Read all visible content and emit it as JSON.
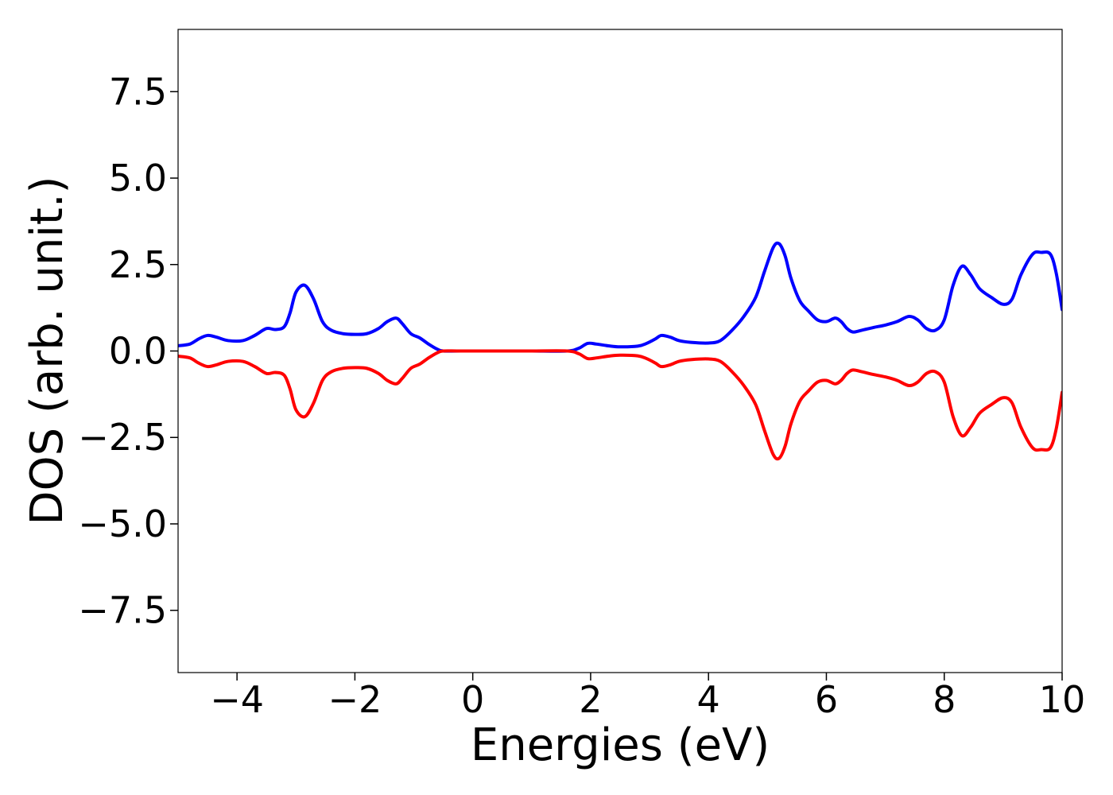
{
  "chart_data": {
    "type": "line",
    "title": "",
    "xlabel": "Energies (eV)",
    "ylabel": "DOS (arb. unit.)",
    "xlim": [
      -5,
      10
    ],
    "ylim": [
      -9.3,
      9.3
    ],
    "x_ticks": [
      -4,
      -2,
      0,
      2,
      4,
      6,
      8,
      10
    ],
    "x_tick_labels": [
      "−4",
      "−2",
      "0",
      "2",
      "4",
      "6",
      "8",
      "10"
    ],
    "y_ticks": [
      7.5,
      5.0,
      2.5,
      0.0,
      -2.5,
      -5.0,
      -7.5
    ],
    "y_tick_labels": [
      "7.5",
      "5.0",
      "2.5",
      "0.0",
      "−2.5",
      "−5.0",
      "−7.5"
    ],
    "grid": false,
    "series": [
      {
        "color": "#0000ff",
        "x": [
          -5.0,
          -4.8,
          -4.65,
          -4.5,
          -4.35,
          -4.15,
          -3.9,
          -3.7,
          -3.5,
          -3.35,
          -3.2,
          -3.1,
          -3.0,
          -2.85,
          -2.7,
          -2.55,
          -2.4,
          -2.2,
          -2.0,
          -1.8,
          -1.6,
          -1.45,
          -1.3,
          -1.2,
          -1.05,
          -0.9,
          -0.75,
          -0.6,
          -0.5,
          -0.2,
          0.5,
          1.0,
          1.6,
          1.8,
          1.95,
          2.1,
          2.3,
          2.5,
          2.8,
          2.95,
          3.1,
          3.2,
          3.35,
          3.5,
          3.7,
          4.0,
          4.2,
          4.4,
          4.6,
          4.8,
          4.95,
          5.1,
          5.2,
          5.3,
          5.4,
          5.55,
          5.7,
          5.85,
          6.0,
          6.15,
          6.25,
          6.35,
          6.45,
          6.6,
          6.8,
          7.0,
          7.2,
          7.4,
          7.55,
          7.7,
          7.85,
          8.0,
          8.15,
          8.3,
          8.45,
          8.6,
          8.8,
          9.0,
          9.15,
          9.3,
          9.5,
          9.65,
          9.8,
          9.9,
          10.0
        ],
        "y": [
          0.15,
          0.2,
          0.35,
          0.45,
          0.4,
          0.3,
          0.3,
          0.45,
          0.65,
          0.62,
          0.7,
          1.1,
          1.7,
          1.9,
          1.5,
          0.85,
          0.6,
          0.5,
          0.48,
          0.5,
          0.65,
          0.85,
          0.95,
          0.8,
          0.5,
          0.38,
          0.2,
          0.05,
          0.0,
          0.0,
          0.0,
          0.0,
          0.0,
          0.08,
          0.22,
          0.2,
          0.15,
          0.12,
          0.14,
          0.22,
          0.35,
          0.45,
          0.4,
          0.3,
          0.25,
          0.23,
          0.3,
          0.6,
          1.0,
          1.55,
          2.3,
          3.0,
          3.1,
          2.75,
          2.1,
          1.45,
          1.15,
          0.9,
          0.85,
          0.95,
          0.85,
          0.65,
          0.55,
          0.6,
          0.68,
          0.75,
          0.85,
          1.0,
          0.9,
          0.65,
          0.6,
          0.9,
          1.9,
          2.45,
          2.2,
          1.8,
          1.55,
          1.35,
          1.5,
          2.2,
          2.8,
          2.85,
          2.8,
          2.25,
          1.2
        ]
      },
      {
        "color": "#ff0000",
        "x": [
          -5.0,
          -4.8,
          -4.65,
          -4.5,
          -4.35,
          -4.15,
          -3.9,
          -3.7,
          -3.5,
          -3.35,
          -3.2,
          -3.1,
          -3.0,
          -2.85,
          -2.7,
          -2.55,
          -2.4,
          -2.2,
          -2.0,
          -1.8,
          -1.6,
          -1.45,
          -1.3,
          -1.2,
          -1.05,
          -0.9,
          -0.75,
          -0.6,
          -0.5,
          -0.2,
          0.5,
          1.0,
          1.6,
          1.8,
          1.95,
          2.1,
          2.3,
          2.5,
          2.8,
          2.95,
          3.1,
          3.2,
          3.35,
          3.5,
          3.7,
          4.0,
          4.2,
          4.4,
          4.6,
          4.8,
          4.95,
          5.1,
          5.2,
          5.3,
          5.4,
          5.55,
          5.7,
          5.85,
          6.0,
          6.15,
          6.25,
          6.35,
          6.45,
          6.6,
          6.8,
          7.0,
          7.2,
          7.4,
          7.55,
          7.7,
          7.85,
          8.0,
          8.15,
          8.3,
          8.45,
          8.6,
          8.8,
          9.0,
          9.15,
          9.3,
          9.5,
          9.65,
          9.8,
          9.9,
          10.0
        ],
        "y": [
          -0.15,
          -0.2,
          -0.35,
          -0.45,
          -0.4,
          -0.3,
          -0.3,
          -0.45,
          -0.65,
          -0.62,
          -0.7,
          -1.1,
          -1.7,
          -1.9,
          -1.5,
          -0.85,
          -0.6,
          -0.5,
          -0.48,
          -0.5,
          -0.65,
          -0.85,
          -0.95,
          -0.8,
          -0.5,
          -0.38,
          -0.2,
          -0.05,
          0.0,
          0.0,
          0.0,
          0.0,
          0.0,
          -0.08,
          -0.22,
          -0.2,
          -0.15,
          -0.12,
          -0.14,
          -0.22,
          -0.35,
          -0.45,
          -0.4,
          -0.3,
          -0.25,
          -0.23,
          -0.3,
          -0.6,
          -1.0,
          -1.55,
          -2.3,
          -3.0,
          -3.1,
          -2.75,
          -2.1,
          -1.45,
          -1.15,
          -0.9,
          -0.85,
          -0.95,
          -0.85,
          -0.65,
          -0.55,
          -0.6,
          -0.68,
          -0.75,
          -0.85,
          -1.0,
          -0.9,
          -0.65,
          -0.6,
          -0.9,
          -1.9,
          -2.45,
          -2.2,
          -1.8,
          -1.55,
          -1.35,
          -1.5,
          -2.2,
          -2.8,
          -2.85,
          -2.8,
          -2.25,
          -1.2
        ]
      }
    ]
  }
}
